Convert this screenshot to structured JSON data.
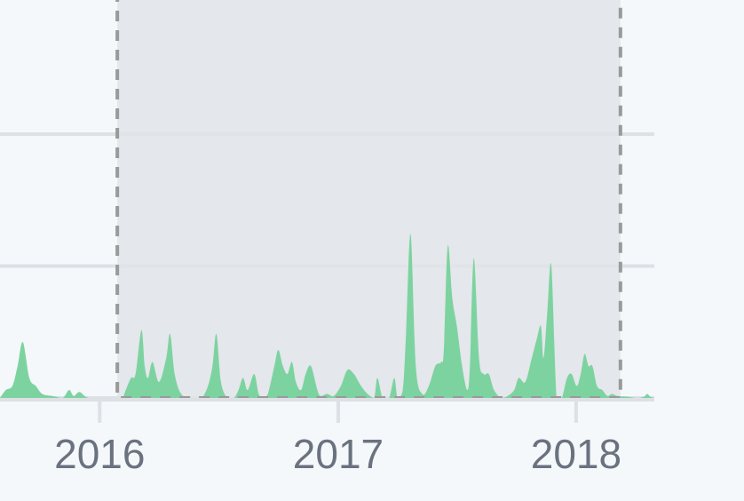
{
  "colors": {
    "background": "#f5f8fa",
    "gridline": "#dde1e5",
    "area_fill": "#7dd3a0",
    "selection_fill": "#e1e4e7",
    "selection_border": "#9a9a9a",
    "tick_label": "#6a7280"
  },
  "chart_data": {
    "type": "area",
    "title": "",
    "xlabel": "",
    "ylabel": "",
    "x_axis": {
      "ticks": [
        "2016",
        "2017",
        "2018"
      ],
      "range": [
        "2015-08-01",
        "2018-05-01"
      ]
    },
    "y_axis": {
      "range": [
        0,
        100
      ],
      "gridlines": [
        0,
        33,
        66
      ],
      "tick_labels_visible": false
    },
    "grid": true,
    "legend": "none",
    "selection": {
      "start": "2016-01-28",
      "end": "2018-03-10"
    },
    "series": [
      {
        "points": [
          [
            "2015-08-01",
            0
          ],
          [
            "2015-08-10",
            2
          ],
          [
            "2015-08-20",
            3
          ],
          [
            "2015-08-28",
            8
          ],
          [
            "2015-09-05",
            14
          ],
          [
            "2015-09-15",
            5
          ],
          [
            "2015-09-25",
            3
          ],
          [
            "2015-10-05",
            1
          ],
          [
            "2015-10-20",
            0.5
          ],
          [
            "2015-11-05",
            0
          ],
          [
            "2015-11-15",
            2
          ],
          [
            "2015-11-22",
            0.5
          ],
          [
            "2015-12-01",
            1.5
          ],
          [
            "2015-12-15",
            0
          ],
          [
            "2016-01-15",
            0
          ],
          [
            "2016-01-28",
            0
          ],
          [
            "2016-02-05",
            0
          ],
          [
            "2016-02-10",
            2
          ],
          [
            "2016-02-18",
            5
          ],
          [
            "2016-02-25",
            6
          ],
          [
            "2016-03-05",
            17
          ],
          [
            "2016-03-10",
            8
          ],
          [
            "2016-03-15",
            5
          ],
          [
            "2016-03-22",
            9
          ],
          [
            "2016-04-01",
            4
          ],
          [
            "2016-04-12",
            10
          ],
          [
            "2016-04-18",
            16
          ],
          [
            "2016-04-25",
            6
          ],
          [
            "2016-05-05",
            1
          ],
          [
            "2016-05-20",
            0
          ],
          [
            "2016-06-05",
            0
          ],
          [
            "2016-06-15",
            3
          ],
          [
            "2016-06-22",
            8
          ],
          [
            "2016-06-28",
            16
          ],
          [
            "2016-07-05",
            4
          ],
          [
            "2016-07-15",
            0
          ],
          [
            "2016-07-25",
            0
          ],
          [
            "2016-08-01",
            2
          ],
          [
            "2016-08-08",
            5
          ],
          [
            "2016-08-15",
            2
          ],
          [
            "2016-08-25",
            6
          ],
          [
            "2016-09-01",
            1
          ],
          [
            "2016-09-08",
            0
          ],
          [
            "2016-09-15",
            1
          ],
          [
            "2016-09-25",
            8
          ],
          [
            "2016-10-01",
            12
          ],
          [
            "2016-10-08",
            8
          ],
          [
            "2016-10-15",
            6
          ],
          [
            "2016-10-22",
            9
          ],
          [
            "2016-10-28",
            4
          ],
          [
            "2016-11-05",
            2
          ],
          [
            "2016-11-12",
            6
          ],
          [
            "2016-11-20",
            8
          ],
          [
            "2016-11-30",
            2
          ],
          [
            "2016-12-05",
            0.5
          ],
          [
            "2016-12-15",
            1
          ],
          [
            "2016-12-25",
            0.5
          ],
          [
            "2017-01-05",
            3
          ],
          [
            "2017-01-15",
            7
          ],
          [
            "2017-01-25",
            6
          ],
          [
            "2017-02-05",
            3
          ],
          [
            "2017-02-15",
            1
          ],
          [
            "2017-02-25",
            0
          ],
          [
            "2017-03-02",
            5
          ],
          [
            "2017-03-10",
            0
          ],
          [
            "2017-03-20",
            0
          ],
          [
            "2017-03-28",
            5
          ],
          [
            "2017-04-02",
            0
          ],
          [
            "2017-04-10",
            2
          ],
          [
            "2017-04-15",
            16
          ],
          [
            "2017-04-22",
            41
          ],
          [
            "2017-04-30",
            8
          ],
          [
            "2017-05-10",
            1
          ],
          [
            "2017-05-20",
            3
          ],
          [
            "2017-05-30",
            8
          ],
          [
            "2017-06-08",
            9
          ],
          [
            "2017-06-12",
            12
          ],
          [
            "2017-06-18",
            38
          ],
          [
            "2017-06-25",
            25
          ],
          [
            "2017-07-02",
            18
          ],
          [
            "2017-07-10",
            8
          ],
          [
            "2017-07-18",
            2
          ],
          [
            "2017-07-22",
            8
          ],
          [
            "2017-07-28",
            35
          ],
          [
            "2017-08-05",
            10
          ],
          [
            "2017-08-12",
            6
          ],
          [
            "2017-08-20",
            6
          ],
          [
            "2017-08-28",
            2
          ],
          [
            "2017-09-08",
            0
          ],
          [
            "2017-09-18",
            0.5
          ],
          [
            "2017-09-28",
            2
          ],
          [
            "2017-10-05",
            5
          ],
          [
            "2017-10-15",
            4
          ],
          [
            "2017-10-25",
            10
          ],
          [
            "2017-11-02",
            15
          ],
          [
            "2017-11-08",
            18
          ],
          [
            "2017-11-12",
            10
          ],
          [
            "2017-11-18",
            22
          ],
          [
            "2017-11-24",
            33
          ],
          [
            "2017-12-02",
            0
          ],
          [
            "2017-12-10",
            0
          ],
          [
            "2017-12-18",
            5
          ],
          [
            "2017-12-25",
            6
          ],
          [
            "2018-01-02",
            3
          ],
          [
            "2018-01-08",
            6
          ],
          [
            "2018-01-14",
            11
          ],
          [
            "2018-01-20",
            8
          ],
          [
            "2018-01-26",
            8
          ],
          [
            "2018-02-02",
            3
          ],
          [
            "2018-02-10",
            2
          ],
          [
            "2018-02-18",
            0.5
          ],
          [
            "2018-02-25",
            1
          ],
          [
            "2018-03-05",
            0.5
          ],
          [
            "2018-03-20",
            0.3
          ],
          [
            "2018-04-05",
            0
          ],
          [
            "2018-04-15",
            0.3
          ],
          [
            "2018-04-20",
            1
          ],
          [
            "2018-04-25",
            0.3
          ],
          [
            "2018-05-01",
            0
          ]
        ]
      }
    ]
  }
}
